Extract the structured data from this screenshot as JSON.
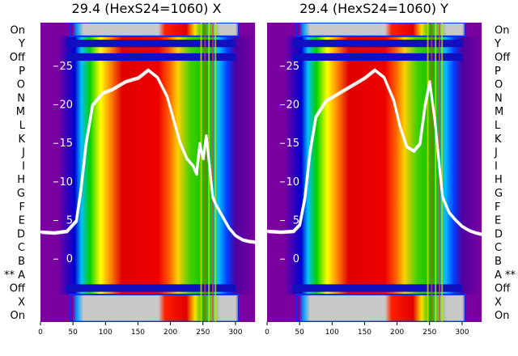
{
  "panels": [
    {
      "title": "29.4 (HexS24=1060) X"
    },
    {
      "title": "29.4 (HexS24=1060) Y"
    }
  ],
  "row_labels_left": [
    "On",
    "Y",
    "Off",
    "P",
    "O",
    "N",
    "M",
    "L",
    "K",
    "J",
    "I",
    "H",
    "G",
    "F",
    "E",
    "D",
    "C",
    "B",
    "** A",
    "Off",
    "X",
    "On"
  ],
  "row_labels_right": [
    "On",
    "Y",
    "Off",
    "P",
    "O",
    "N",
    "M",
    "L",
    "K",
    "J",
    "I",
    "H",
    "G",
    "F",
    "E",
    "D",
    "C",
    "B",
    "A **",
    "Off",
    "X",
    "On"
  ],
  "colors": {
    "background": "#7a00a0",
    "saturated": "#c8c8c8",
    "overlay": "#ffffff",
    "off_band": "#1010c0"
  },
  "chart_data": [
    {
      "type": "heatmap",
      "title": "29.4 (HexS24=1060) X",
      "x_ticks": [
        0,
        50,
        100,
        150,
        200,
        250,
        300
      ],
      "xlim": [
        0,
        330
      ],
      "y_overlay_ticks": [
        0,
        5,
        10,
        15,
        20,
        25
      ],
      "y_overlay_lim": [
        -6,
        28
      ],
      "rows": [
        "On",
        "Y",
        "Off",
        "P",
        "O",
        "N",
        "M",
        "L",
        "K",
        "J",
        "I",
        "H",
        "G",
        "F",
        "E",
        "D",
        "C",
        "B",
        "A",
        "Off",
        "X",
        "On"
      ],
      "overlay_line": {
        "x": [
          0,
          20,
          40,
          55,
          62,
          70,
          80,
          95,
          110,
          130,
          150,
          165,
          180,
          195,
          205,
          215,
          225,
          235,
          240,
          245,
          250,
          255,
          260,
          265,
          270,
          280,
          290,
          300,
          310,
          320,
          330
        ],
        "y": [
          3.5,
          3.4,
          3.6,
          5.0,
          9.0,
          15.0,
          20.0,
          21.5,
          22.0,
          23.0,
          23.5,
          24.5,
          23.5,
          21.0,
          18.0,
          15.0,
          13.0,
          12.0,
          11.0,
          15.0,
          13.0,
          16.0,
          12.0,
          8.0,
          7.0,
          5.5,
          4.0,
          3.0,
          2.5,
          2.3,
          2.2
        ]
      }
    },
    {
      "type": "heatmap",
      "title": "29.4 (HexS24=1060) Y",
      "x_ticks": [
        0,
        50,
        100,
        150,
        200,
        250,
        300
      ],
      "xlim": [
        0,
        330
      ],
      "y_overlay_ticks": [
        0,
        5,
        10,
        15,
        20,
        25
      ],
      "y_overlay_lim": [
        -6,
        28
      ],
      "rows": [
        "On",
        "Y",
        "Off",
        "P",
        "O",
        "N",
        "M",
        "L",
        "K",
        "J",
        "I",
        "H",
        "G",
        "F",
        "E",
        "D",
        "C",
        "B",
        "A",
        "Off",
        "X",
        "On"
      ],
      "overlay_line": {
        "x": [
          0,
          20,
          40,
          50,
          58,
          66,
          75,
          90,
          110,
          130,
          150,
          165,
          180,
          195,
          205,
          215,
          225,
          235,
          243,
          250,
          258,
          265,
          270,
          280,
          290,
          300,
          310,
          320,
          330
        ],
        "y": [
          3.6,
          3.5,
          3.6,
          4.5,
          8.0,
          14.0,
          18.5,
          20.5,
          21.5,
          22.5,
          23.5,
          24.5,
          23.5,
          20.5,
          17.0,
          14.5,
          14.0,
          15.0,
          20.0,
          23.0,
          18.0,
          12.0,
          8.0,
          6.0,
          5.0,
          4.2,
          3.7,
          3.4,
          3.2
        ]
      }
    }
  ]
}
